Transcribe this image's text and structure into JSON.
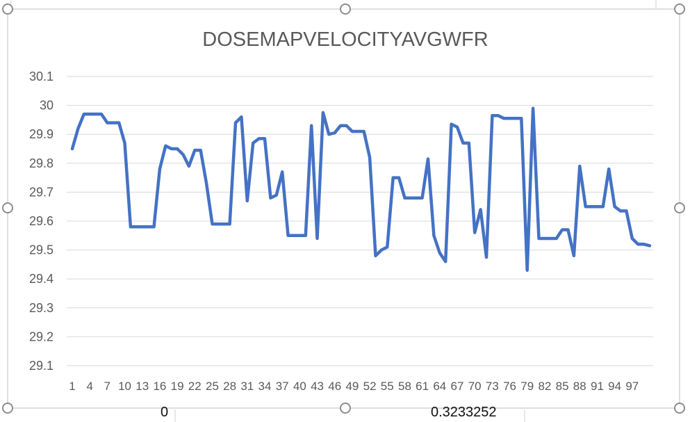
{
  "spreadsheet": {
    "peek_cell_left": "0",
    "peek_cell_right": "0.3233252"
  },
  "colors": {
    "series": "#4472c4",
    "gridline": "#d9d9d9",
    "frame": "#bfbfbf",
    "handle": "#8c8c8c",
    "title": "#595959",
    "tick": "#595959"
  },
  "chart_data": {
    "type": "line",
    "title": "DOSEMAPVELOCITYAVGWFR",
    "xlabel": "",
    "ylabel": "",
    "ylim": [
      29.1,
      30.1
    ],
    "yticks": [
      "29.1",
      "29.2",
      "29.3",
      "29.4",
      "29.5",
      "29.6",
      "29.7",
      "29.8",
      "29.9",
      "30",
      "30.1"
    ],
    "xticks": [
      "1",
      "4",
      "7",
      "10",
      "13",
      "16",
      "19",
      "22",
      "25",
      "28",
      "31",
      "34",
      "37",
      "40",
      "43",
      "46",
      "49",
      "52",
      "55",
      "58",
      "61",
      "64",
      "67",
      "70",
      "73",
      "76",
      "79",
      "82",
      "85",
      "88",
      "91",
      "94",
      "97"
    ],
    "grid": true,
    "legend": "none",
    "series": [
      {
        "values": [
          29.85,
          29.92,
          29.97,
          29.97,
          29.97,
          29.97,
          29.94,
          29.94,
          29.94,
          29.87,
          29.58,
          29.58,
          29.58,
          29.58,
          29.58,
          29.78,
          29.86,
          29.85,
          29.85,
          29.83,
          29.79,
          29.845,
          29.845,
          29.73,
          29.59,
          29.59,
          29.59,
          29.59,
          29.94,
          29.96,
          29.67,
          29.87,
          29.885,
          29.885,
          29.68,
          29.69,
          29.77,
          29.55,
          29.55,
          29.55,
          29.55,
          29.93,
          29.54,
          29.975,
          29.9,
          29.905,
          29.93,
          29.93,
          29.91,
          29.91,
          29.91,
          29.82,
          29.48,
          29.5,
          29.51,
          29.75,
          29.75,
          29.68,
          29.68,
          29.68,
          29.68,
          29.815,
          29.55,
          29.49,
          29.46,
          29.935,
          29.925,
          29.87,
          29.87,
          29.56,
          29.64,
          29.475,
          29.965,
          29.965,
          29.955,
          29.955,
          29.955,
          29.955,
          29.43,
          29.99,
          29.54,
          29.54,
          29.54,
          29.54,
          29.57,
          29.57,
          29.48,
          29.79,
          29.65,
          29.65,
          29.65,
          29.65,
          29.78,
          29.65,
          29.635,
          29.635,
          29.54,
          29.52,
          29.52,
          29.515
        ]
      }
    ]
  }
}
